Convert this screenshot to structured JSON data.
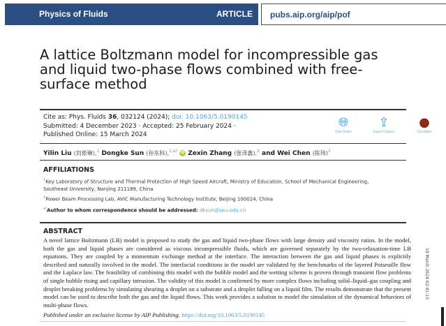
{
  "header": {
    "journal": "Physics of Fluids",
    "type": "ARTICLE",
    "url": "pubs.aip.org/aip/pof",
    "color": "#2b4e82"
  },
  "title": "A lattice Boltzmann model for incompressible gas and liquid two-phase flows combined with free-surface method",
  "cite": {
    "prefix": "Cite as: Phys. Fluids ",
    "volume": "36",
    "rest": ", 032124 (2024); ",
    "doi": "doi: 10.1063/5.0190145",
    "dates1": "Submitted: 4 December 2023 · Accepted: 25 February 2024 ·",
    "dates2": "Published Online: 15 March 2024"
  },
  "actions": [
    {
      "label": "View Online",
      "icon": "globe-icon"
    },
    {
      "label": "Export Citation",
      "icon": "export-icon"
    },
    {
      "label": "CrossMark",
      "icon": "crossmark-icon"
    }
  ],
  "authors": [
    {
      "name": "Yilin Liu",
      "cn": "(刘依琳),",
      "sup": "1"
    },
    {
      "name": "Dongke Sun",
      "cn": "(孙东科),",
      "sup": "1,a)"
    },
    {
      "name": "Zexin Zhang",
      "cn": "(张泽鑫),",
      "sup": "2"
    },
    {
      "name": "and Wei Chen",
      "cn": "(陈玮)",
      "sup": "2"
    }
  ],
  "affiliations": {
    "heading": "AFFILIATIONS",
    "items": [
      {
        "sup": "1",
        "text": "Key Laboratory of Structure and Thermal Protection of High Speed Aircraft, Ministry of Education, School of Mechanical Engineering, Southeast University, Nanjing 211189, China"
      },
      {
        "sup": "2",
        "text": "Power Beam Processing Lab, AVIC Manufacturing Technology Institute, Beijing 100024, China"
      }
    ],
    "corr_sup": "a)",
    "corr": "Author to whom correspondence should be addressed: ",
    "email": "dksun@seu.edu.cn"
  },
  "abstract": {
    "heading": "ABSTRACT",
    "text": "A novel lattice Boltzmann (LB) model is proposed to study the gas and liquid two-phase flows with large density and viscosity ratios. In the model, both the gas and liquid phases are considered as viscous incompressible fluids, which are governed separately by the two-relaxation-time LB equations. They are coupled by a momentum exchange method at the interface. The interaction between the gas and liquid phases is explicitly described and naturally involved in the model. The interfacial conditions in the model are validated by the benchmarks of the layered Poiseuille flow and the Laplace law. The feasibility of combining this model with the bubble model and the wetting scheme is proven through transient flow problems of single bubble rising and capillary intrusion. The validity of this model is confirmed by more complex flows including solid–liquid–gas coupling and droplet breaking problems by simulating shearing a droplet on a substrate and a droplet falling on a liquid film. The results demonstrate that the present model can be used to describe both the gas and the liquid flows. This work provides a solution to model the simulation of the dynamical behaviors of multi-phase flows.",
    "license": "Published under an exclusive license by AIP Publishing. ",
    "license_url": "https://doi.org/10.1063/5.0190145"
  },
  "sidebar_stamp": "19 March 2024 02:41:13"
}
